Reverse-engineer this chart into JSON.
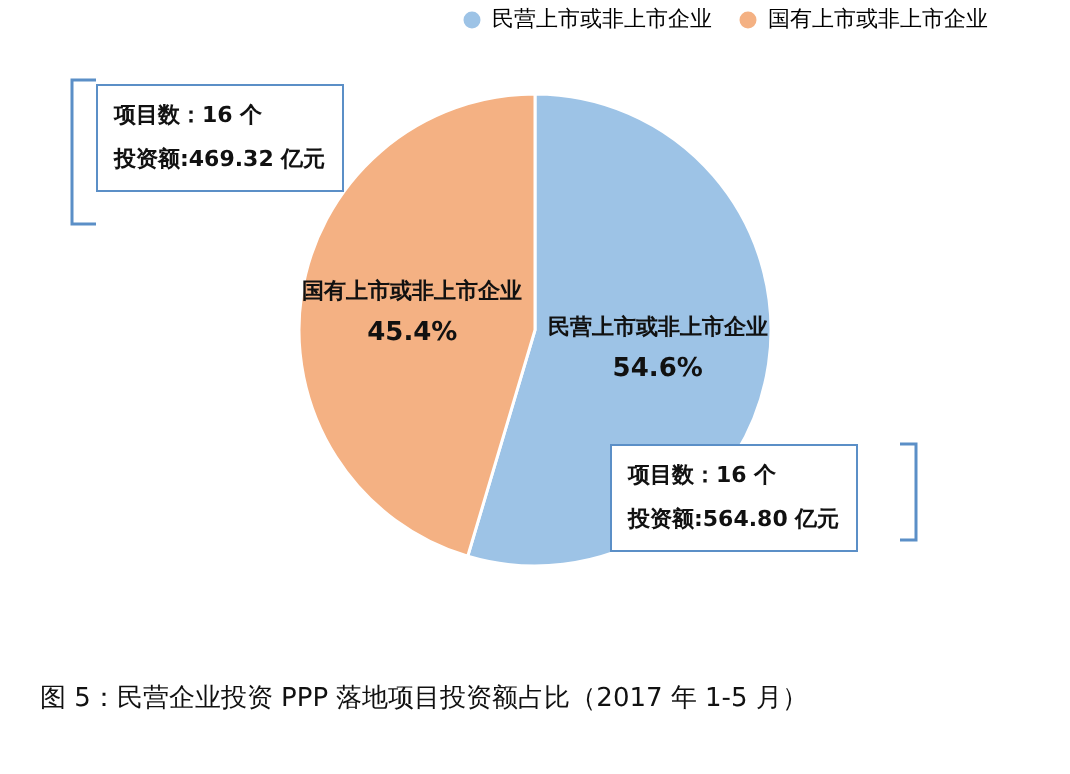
{
  "chart_data": {
    "type": "pie",
    "title": "图 5：民营企业投资 PPP 落地项目投资额占比（2017 年 1-5 月）",
    "categories": [
      "民营上市或非上市企业",
      "国有上市或非上市企业"
    ],
    "values": [
      54.6,
      45.4
    ],
    "colors": [
      "#9dc3e6",
      "#f4b183"
    ],
    "value_labels": [
      "54.6%",
      "45.4%"
    ],
    "legend": "top right",
    "annotations": [
      "项目数：16 个",
      "投资额:564.80 亿元",
      "项目数：16 个",
      "投资额:469.32 亿元"
    ]
  }
}
